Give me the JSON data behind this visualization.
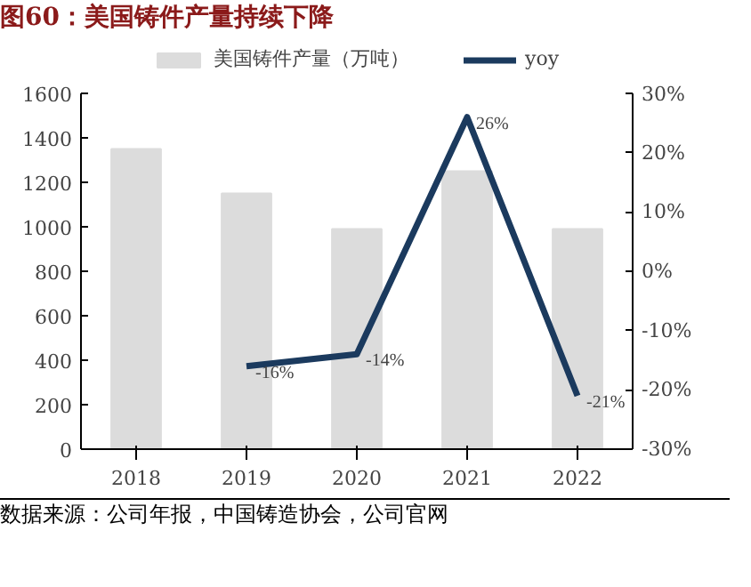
{
  "chart_data": {
    "type": "bar",
    "title": "图60：美国铸件产量持续下降",
    "categories": [
      "2018",
      "2019",
      "2020",
      "2021",
      "2022"
    ],
    "series": [
      {
        "name": "美国铸件产量（万吨）",
        "color": "#dcdcdc",
        "values": [
          1350,
          1150,
          990,
          1250,
          990
        ]
      },
      {
        "name": "yoy",
        "type": "line",
        "axis": "y2",
        "color": "#1b3a5e",
        "values": [
          null,
          -16,
          -14,
          26,
          -21
        ],
        "value_labels": [
          null,
          "-16%",
          "-14%",
          "26%",
          "-21%"
        ]
      }
    ],
    "ylim": [
      0,
      1600
    ],
    "yticks": [
      0,
      200,
      400,
      600,
      800,
      1000,
      1200,
      1400,
      1600
    ],
    "y2lim": [
      -30,
      30
    ],
    "y2ticks": [
      {
        "value": -30,
        "label": "-30%"
      },
      {
        "value": -20,
        "label": "-20%"
      },
      {
        "value": -10,
        "label": "-10%"
      },
      {
        "value": 0,
        "label": "0%"
      },
      {
        "value": 10,
        "label": "10%"
      },
      {
        "value": 20,
        "label": "20%"
      },
      {
        "value": 30,
        "label": "30%"
      }
    ],
    "grid": false,
    "legend": "top",
    "marker": "none",
    "line_style": "solid",
    "annotations": [
      "数据来源：公司年报，中国铸造协会，公司官网"
    ]
  }
}
